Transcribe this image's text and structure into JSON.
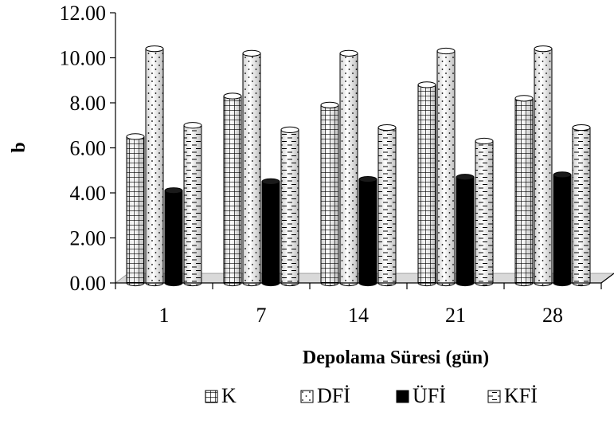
{
  "chart_data": {
    "type": "bar",
    "style": "3d-cylinder",
    "title": "",
    "xlabel": "Depolama Süresi (gün)",
    "ylabel": "b",
    "ylim": [
      0,
      12
    ],
    "yticks": [
      "0.00",
      "2.00",
      "4.00",
      "6.00",
      "8.00",
      "10.00",
      "12.00"
    ],
    "categories": [
      "1",
      "7",
      "14",
      "21",
      "28"
    ],
    "legend_position": "bottom",
    "grid": false,
    "series": [
      {
        "name": "K",
        "pattern": "grid",
        "values": [
          6.5,
          8.3,
          7.9,
          8.8,
          8.2
        ]
      },
      {
        "name": "DFİ",
        "pattern": "dots",
        "values": [
          10.4,
          10.2,
          10.2,
          10.3,
          10.4
        ]
      },
      {
        "name": "ÜFİ",
        "pattern": "solid",
        "values": [
          4.1,
          4.5,
          4.6,
          4.7,
          4.8
        ]
      },
      {
        "name": "KFİ",
        "pattern": "dashes",
        "values": [
          7.0,
          6.8,
          6.9,
          6.3,
          6.9
        ]
      }
    ],
    "colors": {
      "outline": "#000000",
      "solid": "#000000",
      "background": "#ffffff",
      "floor": "#d9d9d9"
    }
  }
}
